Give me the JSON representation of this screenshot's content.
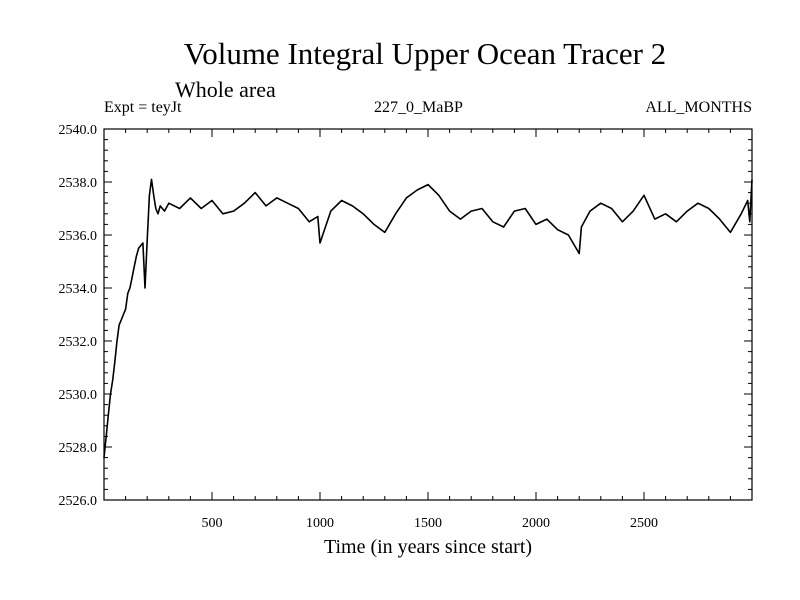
{
  "chart_data": {
    "type": "line",
    "title": "Volume Integral Upper Ocean Tracer 2",
    "subtitle": "Whole area",
    "annotations": {
      "left": "Expt = teyJt",
      "center": "227_0_MaBP",
      "right": "ALL_MONTHS"
    },
    "xlabel": "Time (in years since start)",
    "ylabel": "",
    "xlim": [
      0,
      3000
    ],
    "ylim": [
      2526.0,
      2540.0
    ],
    "xticks": [
      500,
      1000,
      1500,
      2000,
      2500
    ],
    "xtick_labels": [
      "500",
      "1000",
      "1500",
      "2000",
      "2500"
    ],
    "yticks": [
      2526.0,
      2528.0,
      2530.0,
      2532.0,
      2534.0,
      2536.0,
      2538.0,
      2540.0
    ],
    "ytick_labels": [
      "2526.0",
      "2528.0",
      "2530.0",
      "2532.0",
      "2534.0",
      "2536.0",
      "2538.0",
      "2540.0"
    ],
    "grid": false,
    "series": [
      {
        "name": "Volume Integral Upper Ocean Tracer 2",
        "color": "#000000",
        "x": [
          0,
          10,
          20,
          30,
          40,
          50,
          60,
          70,
          80,
          90,
          100,
          110,
          120,
          130,
          140,
          150,
          160,
          170,
          180,
          190,
          200,
          210,
          220,
          230,
          240,
          250,
          260,
          280,
          300,
          350,
          400,
          450,
          500,
          550,
          600,
          650,
          700,
          750,
          800,
          850,
          900,
          950,
          990,
          1000,
          1050,
          1100,
          1150,
          1200,
          1250,
          1300,
          1350,
          1400,
          1450,
          1500,
          1550,
          1600,
          1650,
          1700,
          1750,
          1800,
          1850,
          1900,
          1950,
          2000,
          2050,
          2100,
          2150,
          2200,
          2210,
          2250,
          2300,
          2350,
          2400,
          2450,
          2500,
          2550,
          2600,
          2650,
          2700,
          2750,
          2800,
          2850,
          2900,
          2950,
          2980,
          2990,
          3000
        ],
        "y": [
          2527.6,
          2528.4,
          2529.2,
          2530.0,
          2530.5,
          2531.2,
          2532.0,
          2532.6,
          2532.8,
          2533.0,
          2533.2,
          2533.8,
          2534.0,
          2534.4,
          2534.8,
          2535.2,
          2535.5,
          2535.6,
          2535.7,
          2534.0,
          2535.8,
          2537.5,
          2538.1,
          2537.5,
          2537.0,
          2536.8,
          2537.1,
          2536.9,
          2537.2,
          2537.0,
          2537.4,
          2537.0,
          2537.3,
          2536.8,
          2536.9,
          2537.2,
          2537.6,
          2537.1,
          2537.4,
          2537.2,
          2537.0,
          2536.5,
          2536.7,
          2535.7,
          2536.9,
          2537.3,
          2537.1,
          2536.8,
          2536.4,
          2536.1,
          2536.8,
          2537.4,
          2537.7,
          2537.9,
          2537.5,
          2536.9,
          2536.6,
          2536.9,
          2537.0,
          2536.5,
          2536.3,
          2536.9,
          2537.0,
          2536.4,
          2536.6,
          2536.2,
          2536.0,
          2535.3,
          2536.3,
          2536.9,
          2537.2,
          2537.0,
          2536.5,
          2536.9,
          2537.5,
          2536.6,
          2536.8,
          2536.5,
          2536.9,
          2537.2,
          2537.0,
          2536.6,
          2536.1,
          2536.8,
          2537.3,
          2536.5,
          2538.1
        ]
      }
    ]
  }
}
